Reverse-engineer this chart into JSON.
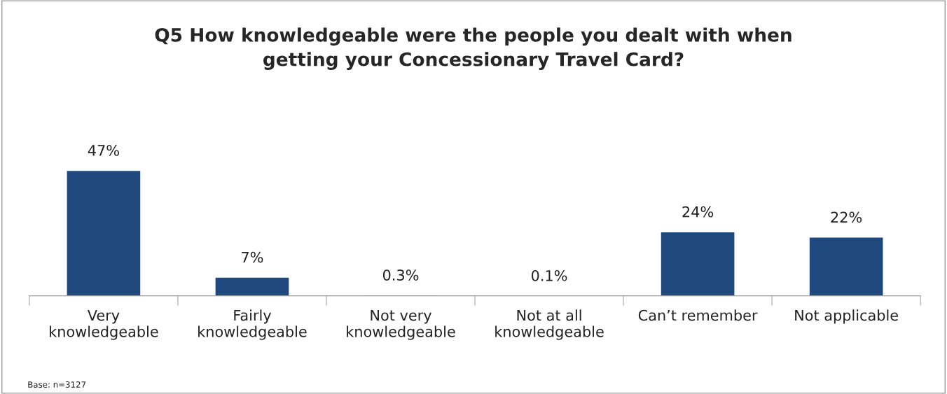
{
  "chart_data": {
    "type": "bar",
    "title": "Q5 How knowledgeable were the people you dealt with when\ngetting your Concessionary Travel Card?",
    "categories": [
      "Very\nknowledgeable",
      "Fairly\nknowledgeable",
      "Not very\nknowledgeable",
      "Not at all\nknowledgeable",
      "Can’t remember",
      "Not applicable"
    ],
    "values": [
      47,
      7,
      0.3,
      0.1,
      24,
      22
    ],
    "value_labels": [
      "47%",
      "7%",
      "0.3%",
      "0.1%",
      "24%",
      "22%"
    ],
    "color": "#1f497d",
    "grid": false,
    "legend": false,
    "tick_labels": "x",
    "annotations": [
      "Base: n=3127"
    ]
  }
}
